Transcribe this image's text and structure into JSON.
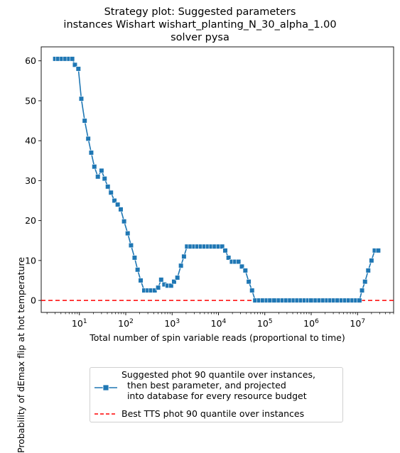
{
  "title_lines": [
    "Strategy plot: Suggested parameters",
    "instances Wishart wishart_planting_N_30_alpha_1.00",
    "solver pysa"
  ],
  "legend": {
    "series_label_lines": [
      "Suggested phot 90 quantile over instances,",
      "  then best parameter, and projected",
      "  into database for every resource budget"
    ],
    "reference_label": "Best TTS phot 90 quantile over instances"
  },
  "colors": {
    "series": "#1f77b4",
    "reference": "#ff0000"
  },
  "chart_data": {
    "type": "line",
    "title": "Strategy plot: Suggested parameters\n instances Wishart wishart_planting_N_30_alpha_1.00\nsolver pysa",
    "xlabel": "Total number of spin variable reads (proportional to time)",
    "ylabel": "Probability of dEmax flip at hot temperature",
    "xscale": "log",
    "xlim": [
      1.5,
      60000000
    ],
    "ylim": [
      -3,
      63.5
    ],
    "x_ticks": [
      {
        "value": 10,
        "label": "10^1"
      },
      {
        "value": 100,
        "label": "10^2"
      },
      {
        "value": 1000,
        "label": "10^3"
      },
      {
        "value": 10000,
        "label": "10^4"
      },
      {
        "value": 100000,
        "label": "10^5"
      },
      {
        "value": 1000000,
        "label": "10^6"
      },
      {
        "value": 10000000,
        "label": "10^7"
      }
    ],
    "y_ticks": [
      0,
      10,
      20,
      30,
      40,
      50,
      60
    ],
    "grid": false,
    "legend_position": "below plot",
    "series": [
      {
        "name": "Suggested phot 90 quantile over instances,\n  then best parameter, and projected\n  into database for every resource budget",
        "marker": "square",
        "points": [
          [
            3,
            60.5
          ],
          [
            3.5,
            60.5
          ],
          [
            4.2,
            60.5
          ],
          [
            5,
            60.5
          ],
          [
            6,
            60.5
          ],
          [
            7,
            60.5
          ],
          [
            8,
            59
          ],
          [
            9.5,
            58
          ],
          [
            11,
            50.5
          ],
          [
            13,
            45
          ],
          [
            15.5,
            40.5
          ],
          [
            18,
            37
          ],
          [
            21,
            33.5
          ],
          [
            25,
            31
          ],
          [
            30,
            32.5
          ],
          [
            35,
            30.5
          ],
          [
            41,
            28.5
          ],
          [
            48,
            27
          ],
          [
            57,
            25
          ],
          [
            67,
            24
          ],
          [
            78,
            22.8
          ],
          [
            92,
            19.8
          ],
          [
            110,
            16.8
          ],
          [
            130,
            13.8
          ],
          [
            155,
            10.7
          ],
          [
            180,
            7.7
          ],
          [
            210,
            5
          ],
          [
            250,
            2.5
          ],
          [
            300,
            2.5
          ],
          [
            350,
            2.5
          ],
          [
            420,
            2.5
          ],
          [
            500,
            3.2
          ],
          [
            580,
            5.2
          ],
          [
            680,
            4
          ],
          [
            800,
            3.7
          ],
          [
            950,
            3.7
          ],
          [
            1100,
            4.7
          ],
          [
            1300,
            5.7
          ],
          [
            1550,
            8.7
          ],
          [
            1800,
            11
          ],
          [
            2100,
            13.5
          ],
          [
            2500,
            13.5
          ],
          [
            3000,
            13.5
          ],
          [
            3500,
            13.5
          ],
          [
            4200,
            13.5
          ],
          [
            5000,
            13.5
          ],
          [
            6000,
            13.5
          ],
          [
            7000,
            13.5
          ],
          [
            8300,
            13.5
          ],
          [
            10000,
            13.5
          ],
          [
            12000,
            13.5
          ],
          [
            14000,
            12.5
          ],
          [
            16500,
            10.7
          ],
          [
            19500,
            9.7
          ],
          [
            23000,
            9.7
          ],
          [
            27000,
            9.7
          ],
          [
            32000,
            8.5
          ],
          [
            38000,
            7.5
          ],
          [
            45000,
            4.7
          ],
          [
            53000,
            2.5
          ],
          [
            62000,
            0
          ],
          [
            75000,
            0
          ],
          [
            90000,
            0
          ],
          [
            110000,
            0
          ],
          [
            130000,
            0
          ],
          [
            160000,
            0
          ],
          [
            200000,
            0
          ],
          [
            240000,
            0
          ],
          [
            290000,
            0
          ],
          [
            350000,
            0
          ],
          [
            420000,
            0
          ],
          [
            500000,
            0
          ],
          [
            600000,
            0
          ],
          [
            720000,
            0
          ],
          [
            860000,
            0
          ],
          [
            1000000,
            0
          ],
          [
            1250000,
            0
          ],
          [
            1500000,
            0
          ],
          [
            1800000,
            0
          ],
          [
            2200000,
            0
          ],
          [
            2600000,
            0
          ],
          [
            3100000,
            0
          ],
          [
            3700000,
            0
          ],
          [
            4500000,
            0
          ],
          [
            5400000,
            0
          ],
          [
            6500000,
            0
          ],
          [
            7800000,
            0
          ],
          [
            9300000,
            0
          ],
          [
            11000000,
            0
          ],
          [
            12500000,
            2.5
          ],
          [
            14500000,
            4.7
          ],
          [
            17000000,
            7.5
          ],
          [
            20000000,
            10
          ],
          [
            23500000,
            12.5
          ],
          [
            28000000,
            12.5
          ]
        ]
      }
    ],
    "reference_lines": [
      {
        "name": "Best TTS phot 90 quantile over instances",
        "y": 0,
        "style": "dashed"
      }
    ]
  }
}
